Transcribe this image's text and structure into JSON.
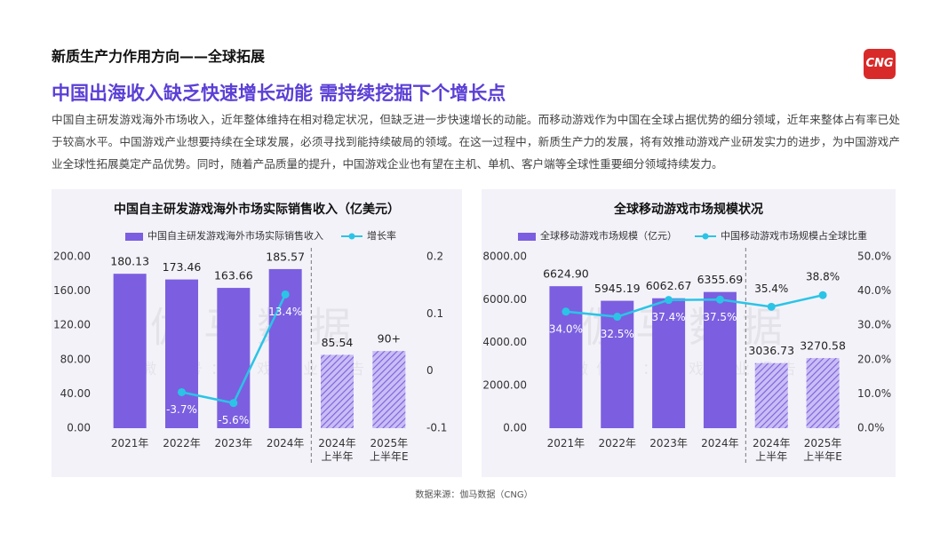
{
  "header": {
    "section": "新质生产力作用方向——全球拓展",
    "headline": "中国出海收入缺乏快速增长动能 需持续挖掘下个增长点",
    "paragraph": "中国自主研发游戏海外市场收入，近年整体维持在相对稳定状况，但缺乏进一步快速增长的动能。而移动游戏作为中国在全球占据优势的细分领域，近年来整体占有率已处于较高水平。中国游戏产业想要持续在全球发展，必须寻找到能持续破局的领域。在这一过程中，新质生产力的发展，将有效推动游戏产业研发实力的进步，为中国游戏产业全球性拓展奠定产品优势。同时，随着产品质量的提升，中国游戏企业也有望在主机、单机、客户端等全球性重要细分领域持续发力。"
  },
  "logo": {
    "text": "CNG"
  },
  "watermark": {
    "brand": "伽马数据",
    "wechat": "微信号：游戏产业报告"
  },
  "footer": {
    "source": "数据来源：伽马数据（CNG）"
  },
  "chart_data": [
    {
      "type": "bar",
      "title": "中国自主研发游戏海外市场实际销售收入（亿美元）",
      "categories": [
        "2021年",
        "2022年",
        "2023年",
        "2024年",
        "2024年\n上半年",
        "2025年\n上半年E"
      ],
      "bar_styles": [
        "solid",
        "solid",
        "solid",
        "solid",
        "hatched",
        "hatched"
      ],
      "series": [
        {
          "name": "中国自主研发游戏海外市场实际销售收入",
          "type": "bar",
          "color": "#7b5fe0",
          "values": [
            180.13,
            173.46,
            163.66,
            185.57,
            85.54,
            90
          ],
          "value_labels": [
            "180.13",
            "173.46",
            "163.66",
            "185.57",
            "85.54",
            "90+"
          ]
        },
        {
          "name": "增长率",
          "type": "line",
          "axis": "y2",
          "color": "#2bc4e6",
          "values": [
            null,
            -0.037,
            -0.056,
            0.134,
            null,
            null
          ],
          "value_labels": [
            null,
            "-3.7%",
            "-5.6%",
            "13.4%",
            null,
            null
          ]
        }
      ],
      "ylim": [
        0,
        200
      ],
      "yticks": [
        {
          "value": 0,
          "label": "0.00"
        },
        {
          "value": 40,
          "label": "40.00"
        },
        {
          "value": 80,
          "label": "80.00"
        },
        {
          "value": 120,
          "label": "120.00"
        },
        {
          "value": 160,
          "label": "160.00"
        },
        {
          "value": 200,
          "label": "200.00"
        }
      ],
      "y2lim": [
        -0.1,
        0.2
      ],
      "y2ticks": [
        -0.1,
        0,
        0.1,
        0.2
      ]
    },
    {
      "type": "bar",
      "title": "全球移动游戏市场规模状况",
      "categories": [
        "2021年",
        "2022年",
        "2023年",
        "2024年",
        "2024年\n上半年",
        "2025年\n上半年E"
      ],
      "bar_styles": [
        "solid",
        "solid",
        "solid",
        "solid",
        "hatched",
        "hatched"
      ],
      "series": [
        {
          "name": "全球移动游戏市场规模（亿元）",
          "type": "bar",
          "color": "#7b5fe0",
          "values": [
            6624.9,
            5945.19,
            6062.67,
            6355.69,
            3036.73,
            3270.58
          ],
          "value_labels": [
            "6624.90",
            "5945.19",
            "6062.67",
            "6355.69",
            "3036.73",
            "3270.58"
          ]
        },
        {
          "name": "中国移动游戏市场规模占全球比重",
          "type": "line",
          "axis": "y2",
          "color": "#2bc4e6",
          "values": [
            34.0,
            32.5,
            37.4,
            37.5,
            35.4,
            38.8
          ],
          "value_labels": [
            "34.0%",
            "32.5%",
            "37.4%",
            "37.5%",
            "35.4%",
            "38.8%"
          ]
        }
      ],
      "ylim": [
        0,
        8000
      ],
      "yticks": [
        {
          "value": 0,
          "label": "0.00"
        },
        {
          "value": 2000,
          "label": "2000.00"
        },
        {
          "value": 4000,
          "label": "4000.00"
        },
        {
          "value": 6000,
          "label": "6000.00"
        },
        {
          "value": 8000,
          "label": "8000.00"
        }
      ],
      "y2lim": [
        0,
        50
      ],
      "y2ticks": [
        {
          "value": 0,
          "label": "0.0%"
        },
        {
          "value": 10,
          "label": "10.0%"
        },
        {
          "value": 20,
          "label": "20.0%"
        },
        {
          "value": 30,
          "label": "30.0%"
        },
        {
          "value": 40,
          "label": "40.0%"
        },
        {
          "value": 50,
          "label": "50.0%"
        }
      ]
    }
  ]
}
